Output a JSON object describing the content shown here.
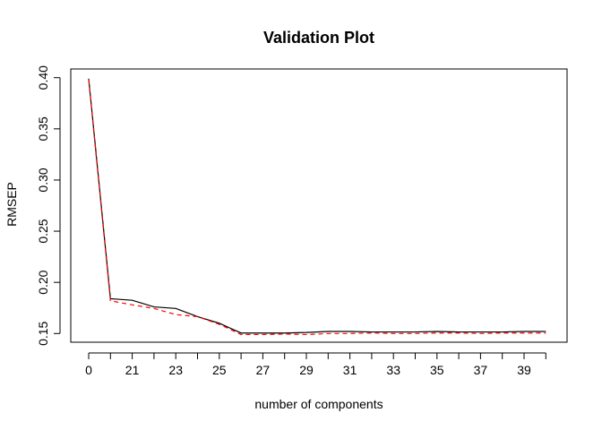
{
  "chart_data": {
    "type": "line",
    "title": "Validation Plot",
    "xlabel": "number of components",
    "ylabel": "RMSEP",
    "x_tick_labels": [
      "0",
      "21",
      "23",
      "25",
      "27",
      "29",
      "31",
      "33",
      "35",
      "37",
      "39"
    ],
    "y_ticks": [
      0.15,
      0.2,
      0.25,
      0.3,
      0.35,
      0.4
    ],
    "y_tick_labels": [
      "0.15",
      "0.20",
      "0.25",
      "0.30",
      "0.35",
      "0.40"
    ],
    "ylim": [
      0.1415,
      0.4085
    ],
    "grid": false,
    "legend": "none",
    "x": [
      0,
      20,
      21,
      22,
      23,
      24,
      25,
      26,
      27,
      28,
      29,
      30,
      31,
      32,
      33,
      34,
      35,
      36,
      37,
      38,
      39,
      40
    ],
    "series": [
      {
        "color": "#000000",
        "dash": "solid",
        "values": [
          0.399,
          0.184,
          0.1825,
          0.176,
          0.1745,
          0.1665,
          0.16,
          0.1505,
          0.1505,
          0.1505,
          0.151,
          0.152,
          0.152,
          0.1515,
          0.1515,
          0.1515,
          0.152,
          0.1515,
          0.1515,
          0.1515,
          0.152,
          0.152
        ]
      },
      {
        "color": "#ff0000",
        "dash": "dashed",
        "values": [
          0.398,
          0.182,
          0.178,
          0.1745,
          0.1685,
          0.1665,
          0.159,
          0.149,
          0.149,
          0.1495,
          0.149,
          0.15,
          0.15,
          0.1505,
          0.15,
          0.15,
          0.1505,
          0.1505,
          0.15,
          0.1505,
          0.1505,
          0.1505
        ]
      }
    ]
  }
}
